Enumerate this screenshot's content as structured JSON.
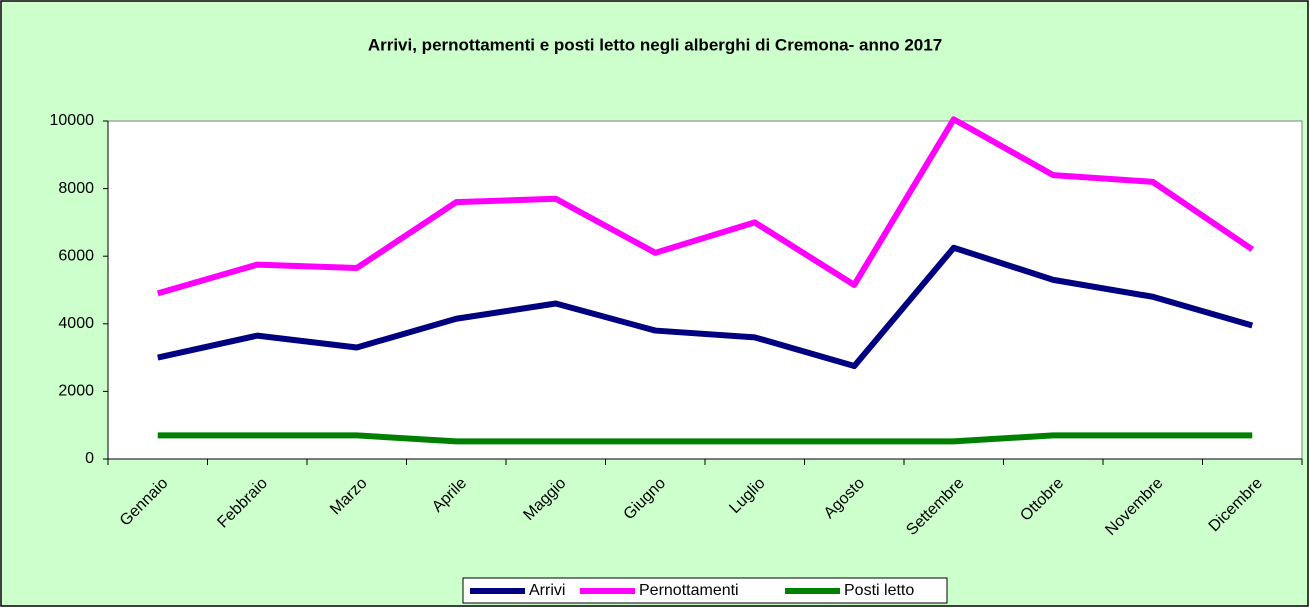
{
  "chart_data": {
    "type": "line",
    "title": "Arrivi, pernottamenti e posti letto negli alberghi di Cremona- anno 2017",
    "categories": [
      "Gennaio",
      "Febbraio",
      "Marzo",
      "Aprile",
      "Maggio",
      "Giugno",
      "Luglio",
      "Agosto",
      "Settembre",
      "Ottobre",
      "Novembre",
      "Dicembre"
    ],
    "series": [
      {
        "name": "Arrivi",
        "color": "#000080",
        "values": [
          3000,
          3650,
          3300,
          4150,
          4600,
          3800,
          3600,
          2750,
          6250,
          5300,
          4800,
          3950
        ]
      },
      {
        "name": "Pernottamenti",
        "color": "#ff00ff",
        "values": [
          4900,
          5750,
          5650,
          7600,
          7700,
          6100,
          7000,
          5150,
          10050,
          8400,
          8200,
          6200
        ]
      },
      {
        "name": "Posti letto",
        "color": "#008000",
        "values": [
          700,
          700,
          700,
          520,
          520,
          520,
          520,
          520,
          520,
          700,
          700,
          700
        ]
      }
    ],
    "ylim": [
      0,
      10000
    ],
    "yticks": [
      0,
      2000,
      4000,
      6000,
      8000,
      10000
    ],
    "legend": "bottom"
  }
}
